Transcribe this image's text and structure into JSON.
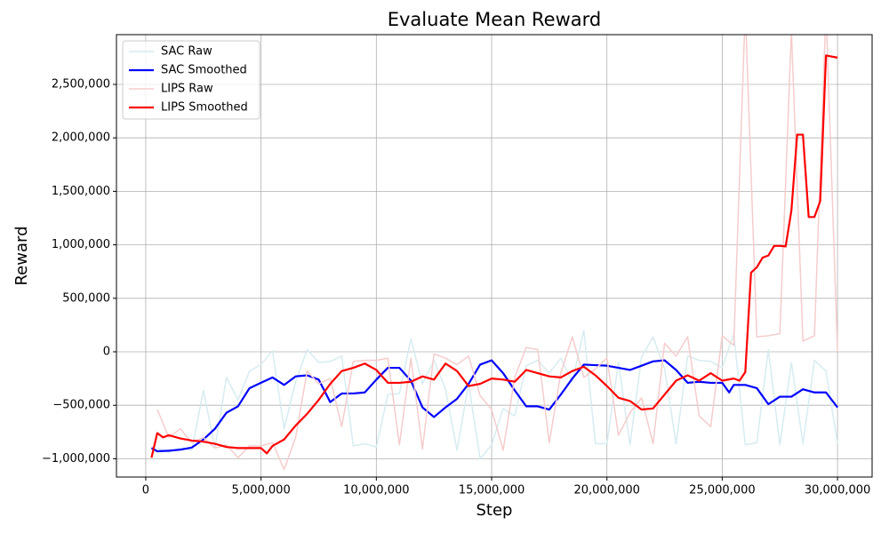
{
  "chart_data": {
    "type": "line",
    "title": "Evaluate Mean Reward",
    "x_label": "Step",
    "y_label": "Reward",
    "xlim": [
      -1270000,
      31500000
    ],
    "ylim": [
      -1171000,
      2965000
    ],
    "xticks": [
      0,
      {
        "value": 5000000,
        "label": "5,000,000"
      },
      {
        "value": 10000000,
        "label": "10,000,000"
      },
      {
        "value": 15000000,
        "label": "15,000,000"
      },
      {
        "value": 20000000,
        "label": "20,000,000"
      },
      {
        "value": 25000000,
        "label": "25,000,000"
      },
      {
        "value": 30000000,
        "label": "30,000,000"
      }
    ],
    "yticks": [
      {
        "value": -1000000,
        "label": "−1,000,000"
      },
      {
        "value": -500000,
        "label": "−500,000"
      },
      0,
      {
        "value": 500000,
        "label": "500,000"
      },
      {
        "value": 1000000,
        "label": "1,000,000"
      },
      {
        "value": 1500000,
        "label": "1,500,000"
      },
      {
        "value": 2000000,
        "label": "2,000,000"
      },
      {
        "value": 2500000,
        "label": "2,500,000"
      }
    ],
    "grid": true,
    "legend": "upper-left",
    "series": [
      {
        "name": "SAC Raw",
        "color": "#d6ecf1",
        "width": 1.5,
        "x": [
          500000,
          1000000,
          1500000,
          2000000,
          2500000,
          3000000,
          3500000,
          4000000,
          4500000,
          5000000,
          5500000,
          6000000,
          6500000,
          7000000,
          7500000,
          8000000,
          8500000,
          9000000,
          9500000,
          10000000,
          10500000,
          11000000,
          11500000,
          12000000,
          12500000,
          13000000,
          13500000,
          14000000,
          14500000,
          15000000,
          15500000,
          16000000,
          16500000,
          17000000,
          17500000,
          18000000,
          18500000,
          19000000,
          19500000,
          20000000,
          20500000,
          21000000,
          21500000,
          22000000,
          22500000,
          23000000,
          23500000,
          24000000,
          24500000,
          25000000,
          25500000,
          26000000,
          26500000,
          27000000,
          27500000,
          28000000,
          28500000,
          29000000,
          29500000,
          30000000
        ],
        "values": [
          -900000,
          -940000,
          -900000,
          -920000,
          -360000,
          -900000,
          -240000,
          -450000,
          -180000,
          -120000,
          10000,
          -720000,
          -280000,
          20000,
          -100000,
          -90000,
          -40000,
          -880000,
          -860000,
          -890000,
          -400000,
          -390000,
          120000,
          -300000,
          -80000,
          -350000,
          -920000,
          -300000,
          -1000000,
          -870000,
          -530000,
          -600000,
          -130000,
          -80000,
          -200000,
          -60000,
          -280000,
          200000,
          -860000,
          -860000,
          -100000,
          -870000,
          -50000,
          140000,
          -160000,
          -860000,
          -40000,
          -80000,
          -90000,
          -150000,
          170000,
          -870000,
          -850000,
          20000,
          -870000,
          -100000,
          -860000,
          -80000,
          -180000,
          -860000
        ]
      },
      {
        "name": "SAC Smoothed",
        "color": "#0000ff",
        "width": 2.2,
        "x": [
          250000,
          500000,
          1000000,
          1500000,
          2000000,
          2500000,
          3000000,
          3500000,
          4000000,
          4500000,
          5000000,
          5500000,
          6000000,
          6500000,
          7000000,
          7500000,
          8000000,
          8500000,
          9000000,
          9500000,
          10000000,
          10500000,
          11000000,
          11500000,
          12000000,
          12500000,
          13000000,
          13500000,
          14000000,
          14500000,
          15000000,
          15500000,
          16000000,
          16500000,
          17000000,
          17500000,
          18000000,
          18500000,
          19000000,
          19500000,
          20000000,
          20500000,
          21000000,
          21500000,
          22000000,
          22500000,
          23000000,
          23500000,
          24000000,
          24500000,
          25000000,
          25300000,
          25500000,
          26000000,
          26500000,
          27000000,
          27500000,
          28000000,
          28500000,
          29000000,
          29500000,
          30000000
        ],
        "values": [
          -900000,
          -930000,
          -925000,
          -915000,
          -895000,
          -820000,
          -720000,
          -570000,
          -510000,
          -340000,
          -290000,
          -240000,
          -310000,
          -230000,
          -220000,
          -260000,
          -470000,
          -390000,
          -390000,
          -380000,
          -260000,
          -150000,
          -150000,
          -270000,
          -520000,
          -610000,
          -520000,
          -440000,
          -300000,
          -120000,
          -80000,
          -200000,
          -360000,
          -510000,
          -510000,
          -540000,
          -400000,
          -250000,
          -120000,
          -125000,
          -130000,
          -150000,
          -170000,
          -130000,
          -90000,
          -80000,
          -170000,
          -290000,
          -280000,
          -290000,
          -290000,
          -380000,
          -310000,
          -310000,
          -340000,
          -490000,
          -420000,
          -420000,
          -350000,
          -380000,
          -380000,
          -520000
        ]
      },
      {
        "name": "LIPS Raw",
        "color": "#f5cccc",
        "width": 1.5,
        "x": [
          500000,
          1000000,
          1500000,
          2000000,
          2500000,
          3000000,
          3500000,
          4000000,
          4500000,
          5000000,
          5500000,
          6000000,
          6500000,
          7000000,
          7500000,
          8000000,
          8500000,
          9000000,
          9500000,
          10000000,
          10500000,
          11000000,
          11500000,
          12000000,
          12500000,
          13000000,
          13500000,
          14000000,
          14500000,
          15000000,
          15500000,
          16000000,
          16500000,
          17000000,
          17500000,
          18000000,
          18500000,
          19000000,
          19500000,
          20000000,
          20500000,
          21000000,
          21500000,
          22000000,
          22500000,
          23000000,
          23500000,
          24000000,
          24500000,
          25000000,
          25500000,
          26000000,
          26500000,
          27000000,
          27500000,
          28000000,
          28500000,
          29000000,
          29500000,
          30000000
        ],
        "values": [
          -540000,
          -800000,
          -720000,
          -850000,
          -800000,
          -900000,
          -870000,
          -990000,
          -880000,
          -880000,
          -850000,
          -1100000,
          -800000,
          -180000,
          -300000,
          -250000,
          -700000,
          -90000,
          -80000,
          -80000,
          -60000,
          -870000,
          -60000,
          -910000,
          -20000,
          -60000,
          -120000,
          -40000,
          -410000,
          -540000,
          -920000,
          -240000,
          40000,
          20000,
          -850000,
          -200000,
          140000,
          -240000,
          -160000,
          -60000,
          -780000,
          -570000,
          -430000,
          -860000,
          80000,
          -40000,
          140000,
          -600000,
          -700000,
          150000,
          60000,
          3200000,
          140000,
          150000,
          170000,
          3000000,
          100000,
          150000,
          3200000,
          0
        ]
      },
      {
        "name": "LIPS Smoothed",
        "color": "#ff0000",
        "width": 2.2,
        "x": [
          250000,
          500000,
          750000,
          1000000,
          1500000,
          2000000,
          2500000,
          3000000,
          3500000,
          4000000,
          4500000,
          5000000,
          5250000,
          5500000,
          6000000,
          6500000,
          7000000,
          7500000,
          8000000,
          8500000,
          9000000,
          9500000,
          10000000,
          10500000,
          11000000,
          11500000,
          12000000,
          12500000,
          13000000,
          13500000,
          14000000,
          14500000,
          15000000,
          15500000,
          16000000,
          16500000,
          17000000,
          17500000,
          18000000,
          18500000,
          19000000,
          19500000,
          20000000,
          20500000,
          21000000,
          21500000,
          22000000,
          22500000,
          23000000,
          23500000,
          24000000,
          24500000,
          25000000,
          25500000,
          25750000,
          26000000,
          26250000,
          26500000,
          26750000,
          27000000,
          27250000,
          27500000,
          27750000,
          28000000,
          28250000,
          28500000,
          28750000,
          29000000,
          29250000,
          29500000,
          30000000
        ],
        "values": [
          -990000,
          -760000,
          -800000,
          -780000,
          -810000,
          -830000,
          -840000,
          -860000,
          -890000,
          -900000,
          -900000,
          -900000,
          -950000,
          -880000,
          -820000,
          -690000,
          -580000,
          -450000,
          -300000,
          -180000,
          -150000,
          -110000,
          -170000,
          -290000,
          -290000,
          -280000,
          -230000,
          -260000,
          -110000,
          -180000,
          -320000,
          -300000,
          -250000,
          -260000,
          -280000,
          -170000,
          -200000,
          -230000,
          -240000,
          -180000,
          -140000,
          -220000,
          -320000,
          -430000,
          -460000,
          -540000,
          -530000,
          -400000,
          -270000,
          -220000,
          -270000,
          -200000,
          -270000,
          -250000,
          -270000,
          -190000,
          740000,
          790000,
          880000,
          900000,
          990000,
          990000,
          985000,
          1320000,
          2030000,
          2030000,
          1260000,
          1260000,
          1410000,
          2770000,
          2750000
        ]
      }
    ]
  }
}
